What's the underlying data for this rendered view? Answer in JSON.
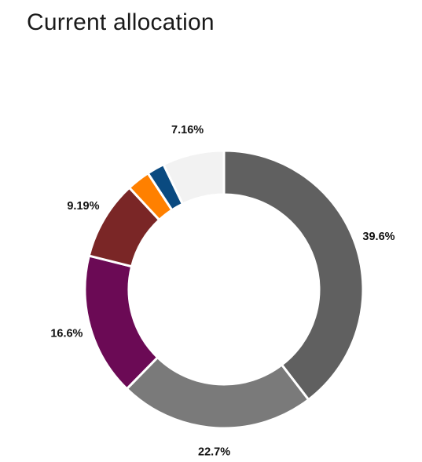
{
  "title": "Current allocation",
  "chart_data": {
    "type": "pie",
    "donut": true,
    "title": "Current allocation",
    "slices": [
      {
        "value": 39.6,
        "label": "39.6%",
        "color": "#606060",
        "show_label": true
      },
      {
        "value": 22.7,
        "label": "22.7%",
        "color": "#7a7a7a",
        "show_label": true
      },
      {
        "value": 16.6,
        "label": "16.6%",
        "color": "#6b0a55",
        "show_label": true
      },
      {
        "value": 9.19,
        "label": "9.19%",
        "color": "#7a2626",
        "show_label": true
      },
      {
        "value": 2.7,
        "label": "",
        "color": "#ff8000",
        "show_label": false
      },
      {
        "value": 2.05,
        "label": "",
        "color": "#0a4a80",
        "show_label": false
      },
      {
        "value": 7.16,
        "label": "7.16%",
        "color": "#f2f2f2",
        "show_label": true
      }
    ]
  }
}
